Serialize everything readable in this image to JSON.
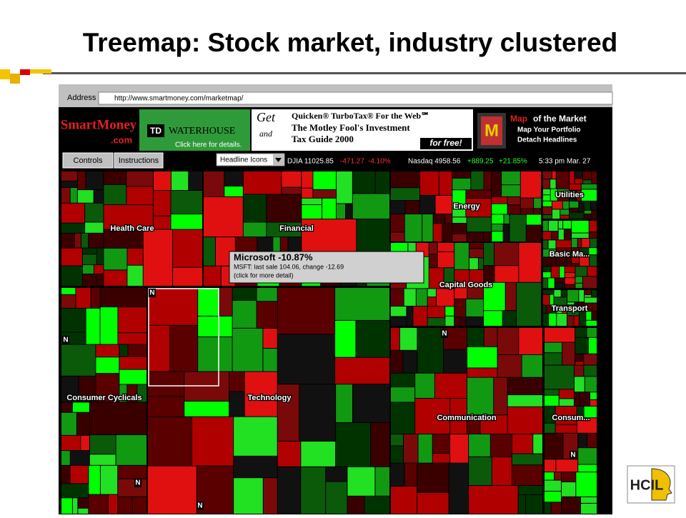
{
  "slide": {
    "title": "Treemap: Stock market, industry clustered"
  },
  "browser": {
    "address_label": "Address",
    "url": "http://www.smartmoney.com/marketmap/"
  },
  "banner": {
    "logo_top": "SmartMoney",
    "logo_bottom": ".com",
    "td": "TD",
    "waterhouse": "WATERHOUSE",
    "td_link": "Click here for details.",
    "ad_get": "Get",
    "ad_line1": "Quicken® TurboTax® For the Web℠",
    "ad_and": "and",
    "ad_line2": "The Motley Fool's Investment",
    "ad_line3": "Tax Guide 2000",
    "ad_free": "for free!",
    "map_title_a": "Map",
    "map_title_b": "of the Market",
    "map_item1": "Map Your Portfolio",
    "map_item2": "Detach Headlines"
  },
  "toolbar": {
    "buttons": [
      "Controls",
      "Instructions"
    ],
    "dropdown": "Headline Icons",
    "djia": "DJIA 11025.85",
    "djia_change": "-471.27",
    "djia_pct": "-4.10%",
    "nasdaq": "Nasdaq 4958.56",
    "nasdaq_change": "+889.25",
    "nasdaq_pct": "+21.85%",
    "time": "5:33 pm  Mar. 27"
  },
  "treemap": {
    "sectors": [
      {
        "label": "Health Care"
      },
      {
        "label": "Financial"
      },
      {
        "label": "Energy"
      },
      {
        "label": "Utilities"
      },
      {
        "label": "Basic Ma..."
      },
      {
        "label": "Capital Goods"
      },
      {
        "label": "Transport"
      },
      {
        "label": "Consumer Cyclicals"
      },
      {
        "label": "Technology"
      },
      {
        "label": "Communication"
      },
      {
        "label": "Consum..."
      }
    ],
    "markers": [
      "N",
      "N",
      "N",
      "N",
      "N",
      "N"
    ]
  },
  "tooltip": {
    "title": "Microsoft -10.87%",
    "line1": "MSFT: last sale 104.06,  change -12.69",
    "line2": "(click for more detail)"
  },
  "logo": "HCIL"
}
